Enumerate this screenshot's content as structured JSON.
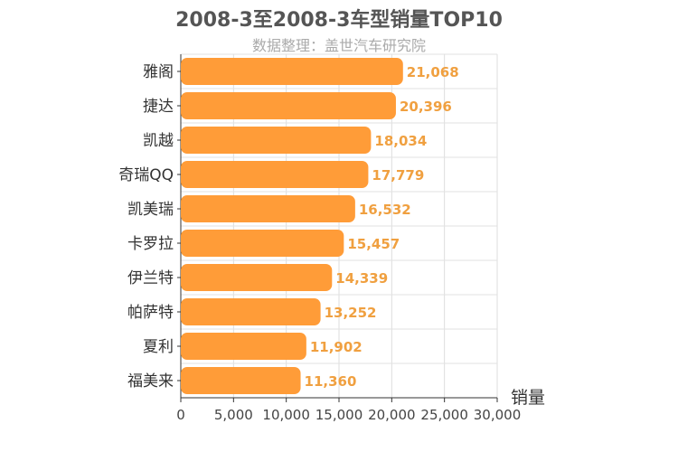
{
  "chart_data": {
    "type": "bar",
    "orientation": "horizontal",
    "title": "2008-3至2008-3车型销量TOP10",
    "subtitle": "数据整理：盖世汽车研究院",
    "xlabel": "销量",
    "xlim": [
      0,
      30000
    ],
    "xticks": [
      0,
      5000,
      10000,
      15000,
      20000,
      25000,
      30000
    ],
    "xtick_labels": [
      "0",
      "5,000",
      "10,000",
      "15,000",
      "20,000",
      "25,000",
      "30,000"
    ],
    "categories": [
      "雅阁",
      "捷达",
      "凯越",
      "奇瑞QQ",
      "凯美瑞",
      "卡罗拉",
      "伊兰特",
      "帕萨特",
      "夏利",
      "福美来"
    ],
    "values": [
      21068,
      20396,
      18034,
      17779,
      16532,
      15457,
      14339,
      13252,
      11902,
      11360
    ],
    "value_labels": [
      "21,068",
      "20,396",
      "18,034",
      "17,779",
      "16,532",
      "15,457",
      "14,339",
      "13,252",
      "11,902",
      "11,360"
    ],
    "bar_color": "#ff9c38",
    "label_color": "#f0a040",
    "grid": true
  }
}
